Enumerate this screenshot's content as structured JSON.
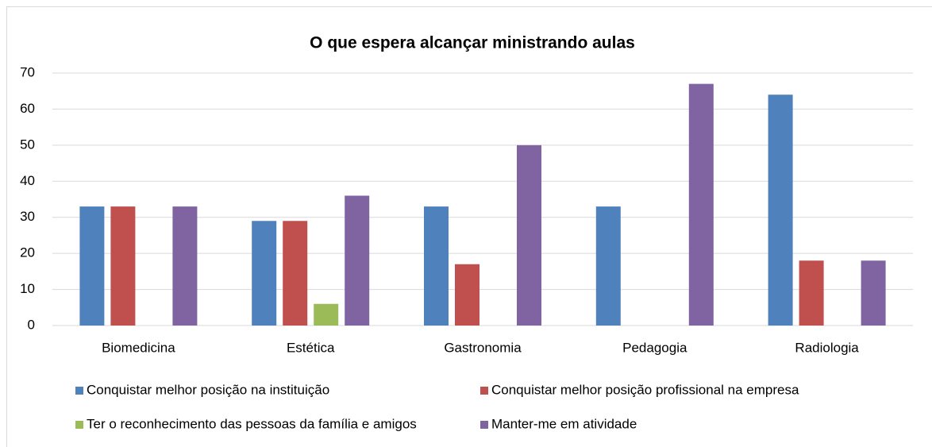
{
  "chart_data": {
    "type": "bar",
    "title": "O que espera alcançar ministrando aulas",
    "categories": [
      "Biomedicina",
      "Estética",
      "Gastronomia",
      "Pedagogia",
      "Radiologia"
    ],
    "series": [
      {
        "name": "Conquistar melhor posição na instituição",
        "color": "#4f81bd",
        "values": [
          33,
          29,
          33,
          33,
          64
        ]
      },
      {
        "name": "Conquistar melhor posição profissional na empresa",
        "color": "#c0504d",
        "values": [
          33,
          29,
          17,
          0,
          18
        ]
      },
      {
        "name": "Ter o reconhecimento das pessoas da família e amigos",
        "color": "#9bbb59",
        "values": [
          0,
          6,
          0,
          0,
          0
        ]
      },
      {
        "name": "Manter-me em atividade",
        "color": "#8064a2",
        "values": [
          33,
          36,
          50,
          67,
          18
        ]
      }
    ],
    "ylim": [
      0,
      70
    ],
    "yticks": [
      0,
      10,
      20,
      30,
      40,
      50,
      60,
      70
    ],
    "grid": true,
    "legend": "bottom"
  }
}
